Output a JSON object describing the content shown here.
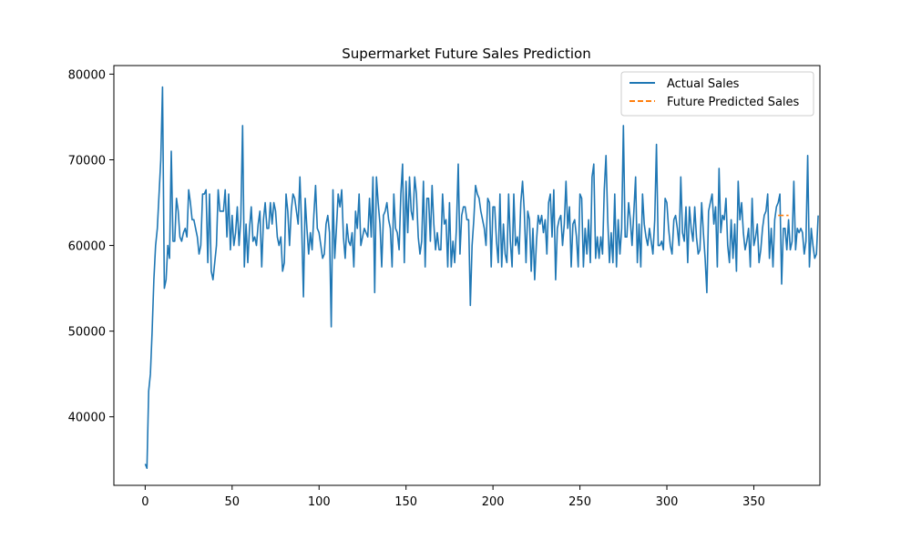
{
  "chart_data": {
    "type": "line",
    "title": "Supermarket Future Sales Prediction",
    "xlabel": "",
    "ylabel": "",
    "xlim": [
      -18,
      388
    ],
    "ylim": [
      32000,
      81000
    ],
    "x_ticks": [
      0,
      50,
      100,
      150,
      200,
      250,
      300,
      350
    ],
    "y_ticks": [
      40000,
      50000,
      60000,
      70000,
      80000
    ],
    "grid": false,
    "legend_position": "top-right",
    "series": [
      {
        "name": "Actual Sales",
        "color": "#1f77b4",
        "style": "solid",
        "x_start": 0,
        "values": [
          34500,
          34000,
          43000,
          45000,
          50000,
          56000,
          60000,
          62000,
          66000,
          70000,
          78500,
          55000,
          56000,
          60000,
          58500,
          71000,
          60500,
          60500,
          65500,
          64000,
          61000,
          60500,
          61500,
          62000,
          61000,
          66500,
          65000,
          63000,
          63000,
          62000,
          61000,
          59000,
          60000,
          66000,
          66000,
          66500,
          58000,
          66000,
          57000,
          56000,
          58000,
          60000,
          66500,
          64000,
          64000,
          64000,
          66500,
          61000,
          66000,
          59500,
          63500,
          60000,
          61500,
          64500,
          60000,
          63000,
          74000,
          57500,
          62500,
          58000,
          62000,
          64500,
          60500,
          61000,
          60000,
          62500,
          64000,
          57500,
          63000,
          65000,
          62000,
          62000,
          65000,
          62500,
          65000,
          64000,
          61000,
          60000,
          61000,
          57000,
          58000,
          66000,
          64000,
          60000,
          64000,
          66000,
          65500,
          64000,
          62500,
          68000,
          62000,
          54000,
          65500,
          62000,
          59000,
          61500,
          59500,
          63500,
          67000,
          62000,
          61500,
          60000,
          58500,
          59000,
          62500,
          63500,
          61500,
          50500,
          66500,
          58500,
          62000,
          66000,
          64500,
          66500,
          61000,
          58500,
          62500,
          60500,
          60000,
          61500,
          57500,
          64000,
          62000,
          66000,
          60000,
          61000,
          62000,
          61500,
          61000,
          65500,
          61000,
          68000,
          54500,
          68000,
          65000,
          62500,
          57500,
          63500,
          64000,
          65000,
          63000,
          62000,
          57500,
          66000,
          62000,
          61500,
          59500,
          66000,
          69500,
          58000,
          67500,
          61500,
          68000,
          64000,
          63000,
          68000,
          66000,
          61000,
          59000,
          60500,
          67500,
          57500,
          65500,
          65500,
          60500,
          67000,
          62500,
          59500,
          61500,
          59500,
          59500,
          66000,
          62500,
          63000,
          57500,
          65000,
          57500,
          60500,
          58000,
          62000,
          69500,
          59000,
          63500,
          64500,
          64500,
          63000,
          63000,
          53000,
          60000,
          63000,
          67000,
          66000,
          65500,
          64000,
          63000,
          62000,
          60000,
          65500,
          65000,
          57500,
          64500,
          64500,
          60500,
          58000,
          66000,
          57500,
          62500,
          59000,
          58000,
          66000,
          60500,
          57500,
          66000,
          60000,
          61000,
          59000,
          65000,
          67500,
          64000,
          58000,
          64000,
          63000,
          57000,
          62000,
          56000,
          60500,
          63500,
          62500,
          63500,
          61500,
          63000,
          59000,
          65000,
          66000,
          61000,
          66500,
          56000,
          62000,
          63000,
          63500,
          60000,
          62500,
          67500,
          62000,
          64500,
          57500,
          62500,
          63000,
          61000,
          57500,
          66000,
          65500,
          57500,
          62000,
          59000,
          63000,
          58000,
          68000,
          69500,
          58500,
          61000,
          58500,
          61000,
          59000,
          66500,
          70500,
          63000,
          58000,
          61500,
          58000,
          66000,
          57500,
          63000,
          59000,
          62000,
          74000,
          61000,
          61000,
          65000,
          63000,
          60000,
          64000,
          68000,
          58000,
          62500,
          57500,
          66000,
          62500,
          61000,
          60000,
          62000,
          60500,
          59000,
          63000,
          71800,
          60000,
          60000,
          60500,
          59500,
          65500,
          65000,
          62000,
          60000,
          59000,
          63000,
          63500,
          62000,
          60000,
          68000,
          61500,
          60500,
          64500,
          58000,
          64500,
          62000,
          60500,
          64500,
          61000,
          59000,
          59500,
          65000,
          61500,
          58500,
          54500,
          64000,
          65000,
          66000,
          62500,
          64500,
          57500,
          69000,
          61500,
          63500,
          63000,
          65500,
          60000,
          58000,
          63000,
          58500,
          62500,
          57000,
          67500,
          63000,
          65000,
          61500,
          59500,
          60500,
          62000,
          57500,
          65500,
          60000,
          61000,
          62500,
          58000,
          59500,
          62000,
          63500,
          64000,
          66000,
          58500,
          62000,
          57500,
          63000,
          64500,
          65000,
          66000,
          55500,
          62000,
          62000,
          59500,
          63000,
          59500,
          60500,
          67500,
          59500,
          62000,
          61500,
          62000,
          61500,
          59000,
          60500,
          70500,
          57500,
          62000,
          60000,
          58500,
          59000,
          63500
        ]
      },
      {
        "name": "Future Predicted Sales",
        "color": "#ff7f0e",
        "style": "dashed",
        "x": [
          364,
          365,
          366,
          367,
          368,
          369,
          370
        ],
        "values": [
          63500,
          63500,
          63500,
          63500,
          63500,
          63500,
          63500
        ]
      }
    ]
  }
}
